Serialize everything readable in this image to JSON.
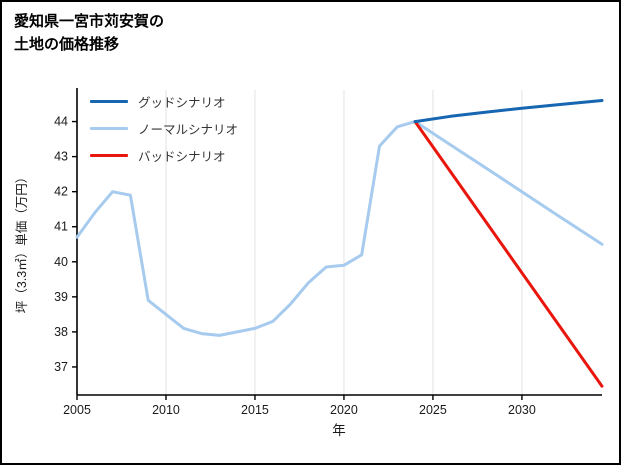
{
  "title": {
    "line1": "愛知県一宮市苅安賀の",
    "line2": "土地の価格推移"
  },
  "chart_data": {
    "type": "line",
    "title": "愛知県一宮市苅安賀の土地の価格推移",
    "xlabel": "年",
    "ylabel": "坪（3.3㎡）単価（万円）",
    "x_ticks": [
      2005,
      2010,
      2015,
      2020,
      2025,
      2030
    ],
    "y_ticks": [
      37,
      38,
      39,
      40,
      41,
      42,
      43,
      44
    ],
    "xlim": [
      2005,
      2034.5
    ],
    "ylim": [
      36.2,
      44.9
    ],
    "grid": "vertical-light",
    "grid_color": "#e3e3e3",
    "legend_position": "top-left",
    "series": [
      {
        "name": "グッドシナリオ",
        "color": "#1666b2",
        "width": 3,
        "x": [
          2024,
          2026,
          2028,
          2030,
          2032,
          2034.5
        ],
        "y": [
          44.0,
          44.15,
          44.27,
          44.38,
          44.48,
          44.6
        ]
      },
      {
        "name": "ノーマルシナリオ",
        "color": "#a6cbee",
        "width": 3,
        "x": [
          2005,
          2006,
          2007,
          2008,
          2009,
          2010,
          2011,
          2012,
          2013,
          2014,
          2015,
          2016,
          2017,
          2018,
          2019,
          2020,
          2021,
          2022,
          2023,
          2024,
          2026,
          2028,
          2030,
          2032,
          2034.5
        ],
        "y": [
          40.7,
          41.4,
          42.0,
          41.9,
          38.9,
          38.5,
          38.1,
          37.95,
          37.9,
          38.0,
          38.1,
          38.3,
          38.8,
          39.4,
          39.85,
          39.9,
          40.2,
          43.3,
          43.85,
          44.0,
          43.33,
          42.67,
          42.0,
          41.33,
          40.5
        ]
      },
      {
        "name": "バッドシナリオ",
        "color": "#e8160c",
        "width": 3,
        "x": [
          2024,
          2034.5
        ],
        "y": [
          44.0,
          36.45
        ]
      }
    ]
  }
}
